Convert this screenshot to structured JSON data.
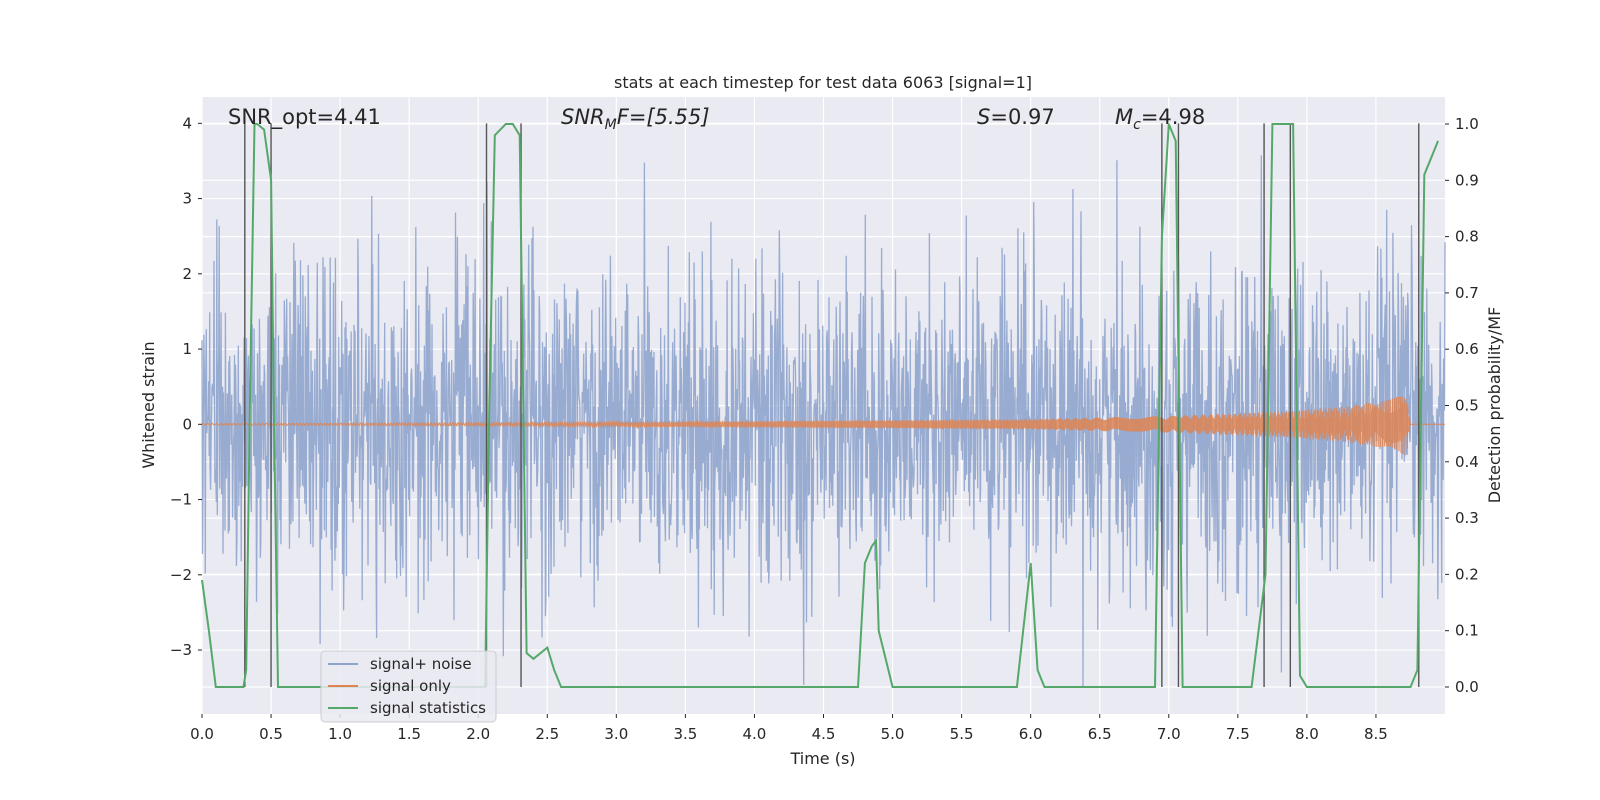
{
  "chart_data": {
    "type": "line",
    "title": "stats at each timestep for test data 6063 [signal=1]",
    "xlabel": "Time (s)",
    "ylabel": "Whitened strain",
    "ylabel_right": "Detection probability/MF",
    "xlim": [
      0.0,
      9.0
    ],
    "ylim": [
      -3.85,
      4.35
    ],
    "ylim_right": [
      -0.048,
      1.048
    ],
    "x_ticks": [
      "0.0",
      "0.5",
      "1.0",
      "1.5",
      "2.0",
      "2.5",
      "3.0",
      "3.5",
      "4.0",
      "4.5",
      "5.0",
      "5.5",
      "6.0",
      "6.5",
      "7.0",
      "7.5",
      "8.0",
      "8.5"
    ],
    "y_ticks": [
      "4",
      "3",
      "2",
      "1",
      "0",
      "−1",
      "−2",
      "−3"
    ],
    "y_ticks_right": [
      "1.0",
      "0.9",
      "0.8",
      "0.7",
      "0.6",
      "0.5",
      "0.4",
      "0.3",
      "0.2",
      "0.1",
      "0.0"
    ],
    "grid": true,
    "legend_placement": "lower-left",
    "annotations": {
      "snr_opt": "SNR_opt=4.41",
      "snr_mf_main": "SNR",
      "snr_mf_sub": "M",
      "snr_mf_rest": "F=[5.55]",
      "s_main": "S",
      "s_rest": "=0.97",
      "mc_main": "M",
      "mc_sub": "c",
      "mc_rest": "=4.98"
    },
    "series": [
      {
        "name": "signal+ noise",
        "color": "#8fa4cc",
        "axis": "left",
        "description_values": "dense whitened noise, mostly within ±2, peaks to about 4"
      },
      {
        "name": "signal only",
        "color": "#dd8452",
        "axis": "left",
        "x_chirp_end": 8.8,
        "amplitude": [
          [
            0.0,
            0.01
          ],
          [
            2.0,
            0.02
          ],
          [
            4.0,
            0.04
          ],
          [
            6.0,
            0.07
          ],
          [
            7.0,
            0.11
          ],
          [
            7.8,
            0.17
          ],
          [
            8.3,
            0.24
          ],
          [
            8.6,
            0.33
          ],
          [
            8.72,
            0.42
          ],
          [
            8.75,
            0.0
          ]
        ]
      },
      {
        "name": "signal statistics",
        "color": "#55a868",
        "axis": "right",
        "x": [
          0.0,
          0.05,
          0.1,
          0.2,
          0.25,
          0.3,
          0.32,
          0.35,
          0.38,
          0.4,
          0.45,
          0.5,
          0.52,
          0.55,
          0.6,
          0.8,
          1.0,
          1.5,
          2.0,
          2.05,
          2.08,
          2.12,
          2.2,
          2.25,
          2.3,
          2.35,
          2.4,
          2.5,
          2.55,
          2.6,
          2.7,
          3.0,
          4.0,
          4.5,
          4.75,
          4.8,
          4.85,
          4.88,
          4.9,
          5.0,
          5.5,
          5.9,
          6.0,
          6.05,
          6.1,
          6.2,
          6.5,
          6.9,
          6.95,
          7.0,
          7.05,
          7.1,
          7.2,
          7.3,
          7.4,
          7.5,
          7.6,
          7.7,
          7.75,
          7.8,
          7.9,
          7.95,
          8.0,
          8.1,
          8.2,
          8.3,
          8.5,
          8.75,
          8.8,
          8.85,
          8.95
        ],
        "y": [
          0.19,
          0.1,
          0.0,
          0.0,
          0.0,
          0.0,
          0.03,
          0.55,
          1.0,
          1.0,
          0.99,
          0.9,
          0.5,
          0.0,
          0.0,
          0.0,
          0.0,
          0.0,
          0.0,
          0.0,
          0.5,
          0.98,
          1.0,
          1.0,
          0.98,
          0.06,
          0.05,
          0.07,
          0.03,
          0.0,
          0.0,
          0.0,
          0.0,
          0.0,
          0.0,
          0.22,
          0.25,
          0.26,
          0.1,
          0.0,
          0.0,
          0.0,
          0.22,
          0.03,
          0.0,
          0.0,
          0.0,
          0.0,
          0.8,
          1.0,
          0.97,
          0.0,
          0.0,
          0.0,
          0.0,
          0.0,
          0.0,
          0.2,
          1.0,
          1.0,
          1.0,
          0.02,
          0.0,
          0.0,
          0.0,
          0.0,
          0.0,
          0.0,
          0.03,
          0.91,
          0.97
        ]
      }
    ],
    "vertical_lines_x": [
      0.31,
      0.5,
      2.06,
      2.31,
      6.95,
      7.07,
      7.69,
      7.88,
      8.81
    ]
  }
}
